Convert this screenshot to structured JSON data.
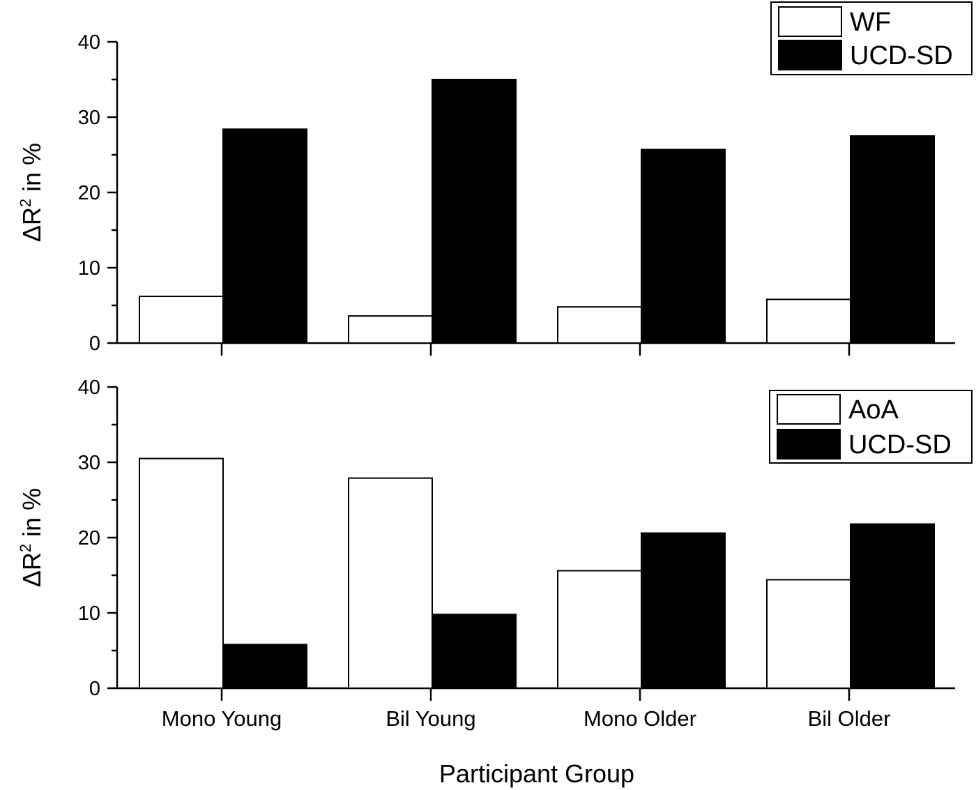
{
  "chart_data": [
    {
      "type": "bar",
      "categories": [
        "Mono Young",
        "Bil Young",
        "Mono Older",
        "Bil Older"
      ],
      "series": [
        {
          "name": "WF",
          "values": [
            6.2,
            3.6,
            4.8,
            5.8
          ],
          "color": "#ffffff"
        },
        {
          "name": "UCD-SD",
          "values": [
            28.4,
            35.0,
            25.7,
            27.5
          ],
          "color": "#000000"
        }
      ],
      "ylabel_prefix": "ΔR",
      "ylabel_sup": "2",
      "ylabel_suffix": " in %",
      "ylim": [
        0,
        40
      ],
      "yticks": [
        "0",
        "10",
        "20",
        "30",
        "40"
      ],
      "legend_position": "top-right",
      "show_category_labels": false
    },
    {
      "type": "bar",
      "categories": [
        "Mono Young",
        "Bil Young",
        "Mono Older",
        "Bil Older"
      ],
      "series": [
        {
          "name": "AoA",
          "values": [
            30.5,
            27.9,
            15.6,
            14.4
          ],
          "color": "#ffffff"
        },
        {
          "name": "UCD-SD",
          "values": [
            5.8,
            9.8,
            20.6,
            21.8
          ],
          "color": "#000000"
        }
      ],
      "ylabel_prefix": "ΔR",
      "ylabel_sup": "2",
      "ylabel_suffix": " in %",
      "ylim": [
        0,
        40
      ],
      "yticks": [
        "0",
        "10",
        "20",
        "30",
        "40"
      ],
      "legend_position": "top-right",
      "show_category_labels": true
    }
  ],
  "xlabel": "Participant Group"
}
